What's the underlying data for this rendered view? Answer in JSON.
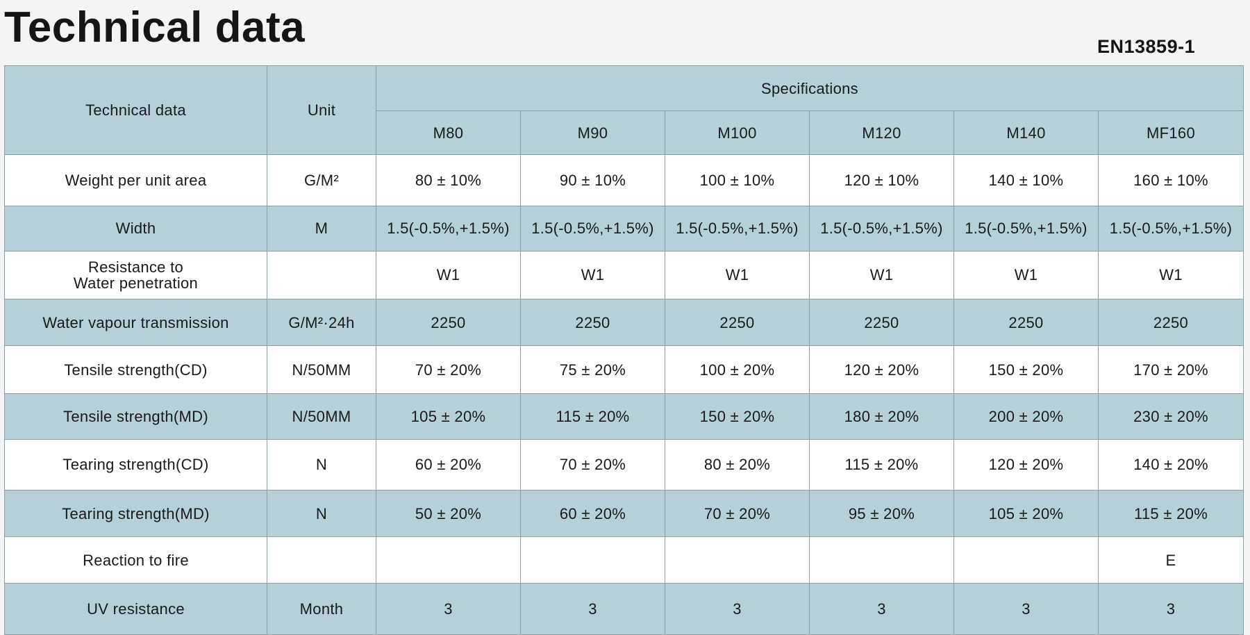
{
  "title": "Technical data",
  "standard": "EN13859-1",
  "table": {
    "col_technical": "Technical data",
    "col_unit": "Unit",
    "group_header": "Specifications",
    "products": [
      "M80",
      "M90",
      "M100",
      "M120",
      "M140",
      "MF160"
    ],
    "rows": [
      {
        "label": "Weight per unit area",
        "unit": "G/M²",
        "values": [
          "80 ± 10%",
          "90 ± 10%",
          "100 ± 10%",
          "120 ± 10%",
          "140 ± 10%",
          "160 ± 10%"
        ]
      },
      {
        "label": "Width",
        "unit": "M",
        "values": [
          "1.5(-0.5%,+1.5%)",
          "1.5(-0.5%,+1.5%)",
          "1.5(-0.5%,+1.5%)",
          "1.5(-0.5%,+1.5%)",
          "1.5(-0.5%,+1.5%)",
          "1.5(-0.5%,+1.5%)"
        ]
      },
      {
        "label_line1": "Resistance to",
        "label_line2": "Water penetration",
        "unit": "",
        "values": [
          "W1",
          "W1",
          "W1",
          "W1",
          "W1",
          "W1"
        ]
      },
      {
        "label": "Water vapour transmission",
        "unit": "G/M²·24h",
        "values": [
          "2250",
          "2250",
          "2250",
          "2250",
          "2250",
          "2250"
        ]
      },
      {
        "label": "Tensile strength(CD)",
        "unit": "N/50MM",
        "values": [
          "70 ± 20%",
          "75 ± 20%",
          "100 ± 20%",
          "120 ± 20%",
          "150 ± 20%",
          "170 ± 20%"
        ]
      },
      {
        "label": "Tensile strength(MD)",
        "unit": "N/50MM",
        "values": [
          "105 ± 20%",
          "115 ± 20%",
          "150 ± 20%",
          "180 ± 20%",
          "200 ± 20%",
          "230 ± 20%"
        ]
      },
      {
        "label": "Tearing strength(CD)",
        "unit": "N",
        "values": [
          "60 ± 20%",
          "70 ± 20%",
          "80 ± 20%",
          "115 ± 20%",
          "120 ± 20%",
          "140 ± 20%"
        ]
      },
      {
        "label": "Tearing strength(MD)",
        "unit": "N",
        "values": [
          "50 ± 20%",
          "60 ± 20%",
          "70 ± 20%",
          "95 ± 20%",
          "105 ± 20%",
          "115 ± 20%"
        ]
      },
      {
        "label": "Reaction to fire",
        "unit": "",
        "values": [
          "",
          "",
          "",
          "",
          "",
          "E"
        ]
      },
      {
        "label": "UV resistance",
        "unit": "Month",
        "values": [
          "3",
          "3",
          "3",
          "3",
          "3",
          "3"
        ]
      }
    ]
  },
  "colors": {
    "band": "#b5d0d7",
    "plain": "#ffffff",
    "border": "#8e9ea4",
    "text": "#1a1a1a"
  }
}
